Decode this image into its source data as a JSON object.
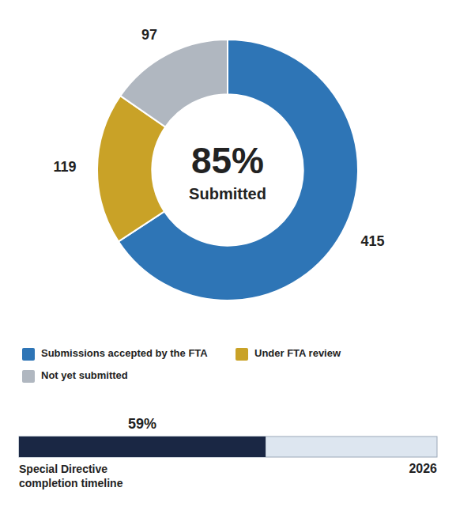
{
  "chart_data": [
    {
      "type": "pie",
      "categories": [
        "Submissions accepted by the FTA",
        "Under FTA review",
        "Not yet submitted"
      ],
      "values": [
        415,
        119,
        97
      ],
      "colors": [
        "#2E75B6",
        "#C9A227",
        "#B0B7C0"
      ],
      "data_labels": true,
      "legend": "bottom",
      "annotations": [
        "85%",
        "Submitted"
      ]
    },
    {
      "type": "bar",
      "orientation": "horizontal",
      "categories": [
        null
      ],
      "values": [
        59
      ],
      "value_labels": [
        "59%"
      ],
      "data_labels": true,
      "colors": [
        "#1A2744"
      ],
      "xlim": [
        0,
        100
      ],
      "tick_labels": false,
      "annotations": [
        "Special Directive\ncompletion timeline",
        "2026"
      ]
    }
  ]
}
